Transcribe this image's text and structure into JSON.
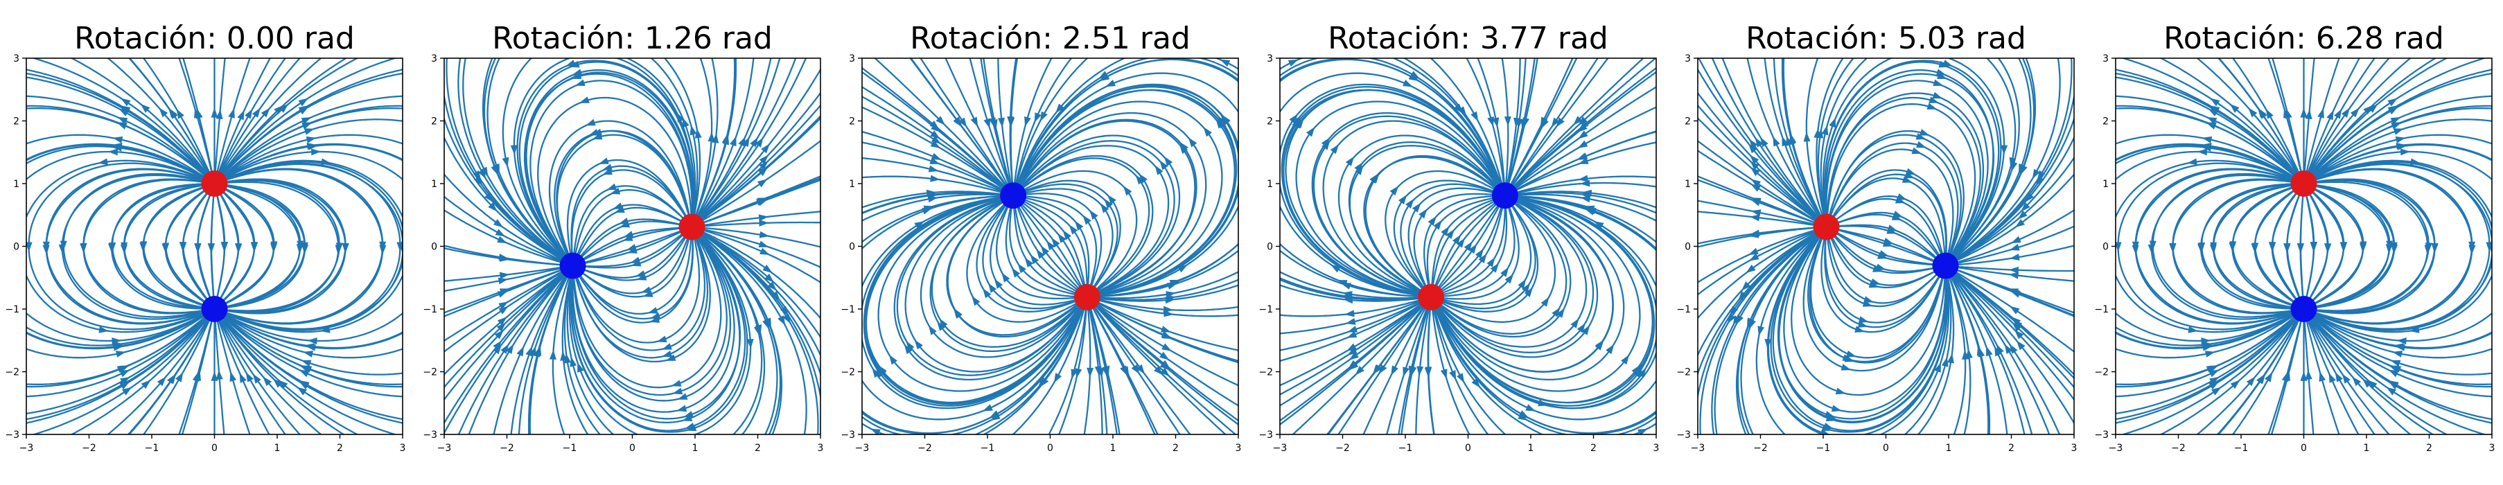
{
  "chart_data": [
    {
      "type": "streamline",
      "title": "Rotación: 0.00 rad",
      "angle_rad": 0.0,
      "xlim": [
        -3,
        3
      ],
      "ylim": [
        -3,
        3
      ],
      "x_ticks": [
        "−3",
        "−2",
        "−1",
        "0",
        "1",
        "2",
        "3"
      ],
      "y_ticks": [
        "−3",
        "−2",
        "−1",
        "0",
        "1",
        "2",
        "3"
      ],
      "charges": [
        {
          "sign": "+",
          "x": 0.0,
          "y": 1.0,
          "color": "#e0181b"
        },
        {
          "sign": "-",
          "x": 0.0,
          "y": -1.0,
          "color": "#0a10e8"
        }
      ]
    },
    {
      "type": "streamline",
      "title": "Rotación: 1.26 rad",
      "angle_rad": 1.26,
      "xlim": [
        -3,
        3
      ],
      "ylim": [
        -3,
        3
      ],
      "x_ticks": [
        "−3",
        "−2",
        "−1",
        "0",
        "1",
        "2",
        "3"
      ],
      "y_ticks": [
        "−3",
        "−2",
        "−1",
        "0",
        "1",
        "2",
        "3"
      ],
      "charges": [
        {
          "sign": "+",
          "x": 0.95,
          "y": 0.31,
          "color": "#e0181b"
        },
        {
          "sign": "-",
          "x": -0.95,
          "y": -0.31,
          "color": "#0a10e8"
        }
      ]
    },
    {
      "type": "streamline",
      "title": "Rotación: 2.51 rad",
      "angle_rad": 2.51,
      "xlim": [
        -3,
        3
      ],
      "ylim": [
        -3,
        3
      ],
      "x_ticks": [
        "−3",
        "−2",
        "−1",
        "0",
        "1",
        "2",
        "3"
      ],
      "y_ticks": [
        "−3",
        "−2",
        "−1",
        "0",
        "1",
        "2",
        "3"
      ],
      "charges": [
        {
          "sign": "+",
          "x": 0.59,
          "y": -0.81,
          "color": "#e0181b"
        },
        {
          "sign": "-",
          "x": -0.59,
          "y": 0.81,
          "color": "#0a10e8"
        }
      ]
    },
    {
      "type": "streamline",
      "title": "Rotación: 3.77 rad",
      "angle_rad": 3.77,
      "xlim": [
        -3,
        3
      ],
      "ylim": [
        -3,
        3
      ],
      "x_ticks": [
        "−3",
        "−2",
        "−1",
        "0",
        "1",
        "2",
        "3"
      ],
      "y_ticks": [
        "−3",
        "−2",
        "−1",
        "0",
        "1",
        "2",
        "3"
      ],
      "charges": [
        {
          "sign": "+",
          "x": -0.59,
          "y": -0.81,
          "color": "#e0181b"
        },
        {
          "sign": "-",
          "x": 0.59,
          "y": 0.81,
          "color": "#0a10e8"
        }
      ]
    },
    {
      "type": "streamline",
      "title": "Rotación: 5.03 rad",
      "angle_rad": 5.03,
      "xlim": [
        -3,
        3
      ],
      "ylim": [
        -3,
        3
      ],
      "x_ticks": [
        "−3",
        "−2",
        "−1",
        "0",
        "1",
        "2",
        "3"
      ],
      "y_ticks": [
        "−3",
        "−2",
        "−1",
        "0",
        "1",
        "2",
        "3"
      ],
      "charges": [
        {
          "sign": "+",
          "x": -0.95,
          "y": 0.31,
          "color": "#e0181b"
        },
        {
          "sign": "-",
          "x": 0.95,
          "y": -0.31,
          "color": "#0a10e8"
        }
      ]
    },
    {
      "type": "streamline",
      "title": "Rotación: 6.28 rad",
      "angle_rad": 6.28,
      "xlim": [
        -3,
        3
      ],
      "ylim": [
        -3,
        3
      ],
      "x_ticks": [
        "−3",
        "−2",
        "−1",
        "0",
        "1",
        "2",
        "3"
      ],
      "y_ticks": [
        "−3",
        "−2",
        "−1",
        "0",
        "1",
        "2",
        "3"
      ],
      "charges": [
        {
          "sign": "+",
          "x": 0.0,
          "y": 1.0,
          "color": "#e0181b"
        },
        {
          "sign": "-",
          "x": 0.0,
          "y": -1.0,
          "color": "#0a10e8"
        }
      ]
    }
  ],
  "colors": {
    "stream": "#1f77b4",
    "axis": "#000000"
  }
}
